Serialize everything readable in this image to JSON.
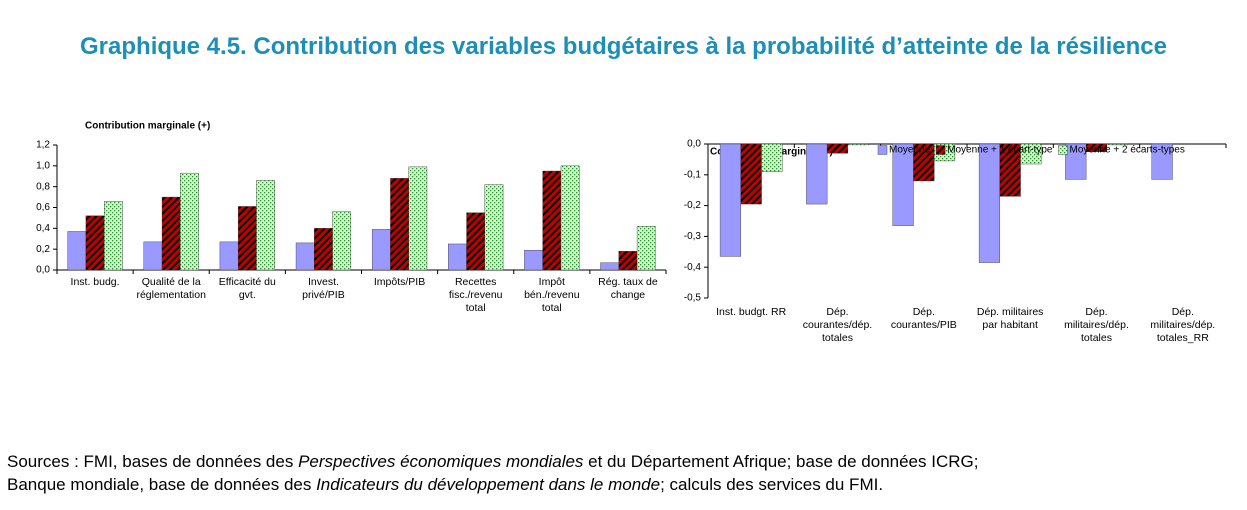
{
  "title": "Graphique 4.5. Contribution des variables budgétaires à la probabilité d’atteinte de la résilience",
  "source": [
    "Sources : FMI, bases de données des ",
    "Perspectives économiques mondiales",
    " et du Département Afrique; base de données ICRG;",
    "Banque mondiale, base de données des ",
    "Indicateurs du développement dans le monde",
    "; calculs des services du FMI."
  ],
  "chart_data": [
    {
      "type": "bar",
      "title": "Contribution marginale (+)",
      "categories": [
        "Inst. budg.",
        "Qualité de la réglementation",
        "Efficacité du gvt.",
        "Invest. privé/PIB",
        "Impôts/PIB",
        "Recettes fisc./revenu total",
        "Impôt bén./revenu total",
        "Rég. taux de change"
      ],
      "series": [
        {
          "color": "#9999ff",
          "pattern": "solid",
          "values": [
            0.37,
            0.27,
            0.27,
            0.26,
            0.39,
            0.25,
            0.19,
            0.07
          ]
        },
        {
          "color": "#c00000",
          "pattern": "hatch",
          "values": [
            0.52,
            0.7,
            0.61,
            0.4,
            0.88,
            0.55,
            0.95,
            0.18
          ]
        },
        {
          "color": "#ccffcc",
          "pattern": "dots",
          "values": [
            0.66,
            0.93,
            0.86,
            0.56,
            0.99,
            0.82,
            1.0,
            0.42
          ]
        }
      ],
      "ylim": [
        0,
        1.2
      ],
      "yticks": [
        {
          "value": 0,
          "label": "0,0"
        },
        {
          "value": 0.2,
          "label": "0,2"
        },
        {
          "value": 0.4,
          "label": "0,4"
        },
        {
          "value": 0.6,
          "label": "0,6"
        },
        {
          "value": 0.8,
          "label": "0,8"
        },
        {
          "value": 1.0,
          "label": "1,0"
        },
        {
          "value": 1.2,
          "label": "1,2"
        }
      ],
      "grid": false,
      "legend": "none"
    },
    {
      "type": "bar",
      "title": "Contribution marginale (-)",
      "categories": [
        "Inst. budgt. RR",
        "Dép. courantes/dép. totales",
        "Dép. courantes/PIB",
        "Dép. militaires par habitant",
        "Dép. militaires/dép. totales",
        "Dép. militaires/dép. totales_RR"
      ],
      "series": [
        {
          "name": "Moyenne",
          "color": "#9999ff",
          "pattern": "solid",
          "values": [
            -0.365,
            -0.195,
            -0.265,
            -0.385,
            -0.115,
            -0.115
          ]
        },
        {
          "name": "Moyenne + 1 écart-type",
          "color": "#c00000",
          "pattern": "hatch",
          "values": [
            -0.195,
            -0.03,
            -0.12,
            -0.17,
            -0.025,
            0
          ]
        },
        {
          "name": "Moyenne + 2 écarts-types",
          "color": "#ccffcc",
          "pattern": "dots",
          "values": [
            -0.09,
            -0.003,
            -0.055,
            -0.065,
            -0.003,
            0
          ]
        }
      ],
      "ylim": [
        -0.5,
        0
      ],
      "yticks": [
        {
          "value": 0,
          "label": "0,0"
        },
        {
          "value": -0.1,
          "label": "-0,1"
        },
        {
          "value": -0.2,
          "label": "-0,2"
        },
        {
          "value": -0.3,
          "label": "-0,3"
        },
        {
          "value": -0.4,
          "label": "-0,4"
        },
        {
          "value": -0.5,
          "label": "-0,5"
        }
      ],
      "grid": false,
      "legend": "top"
    }
  ]
}
